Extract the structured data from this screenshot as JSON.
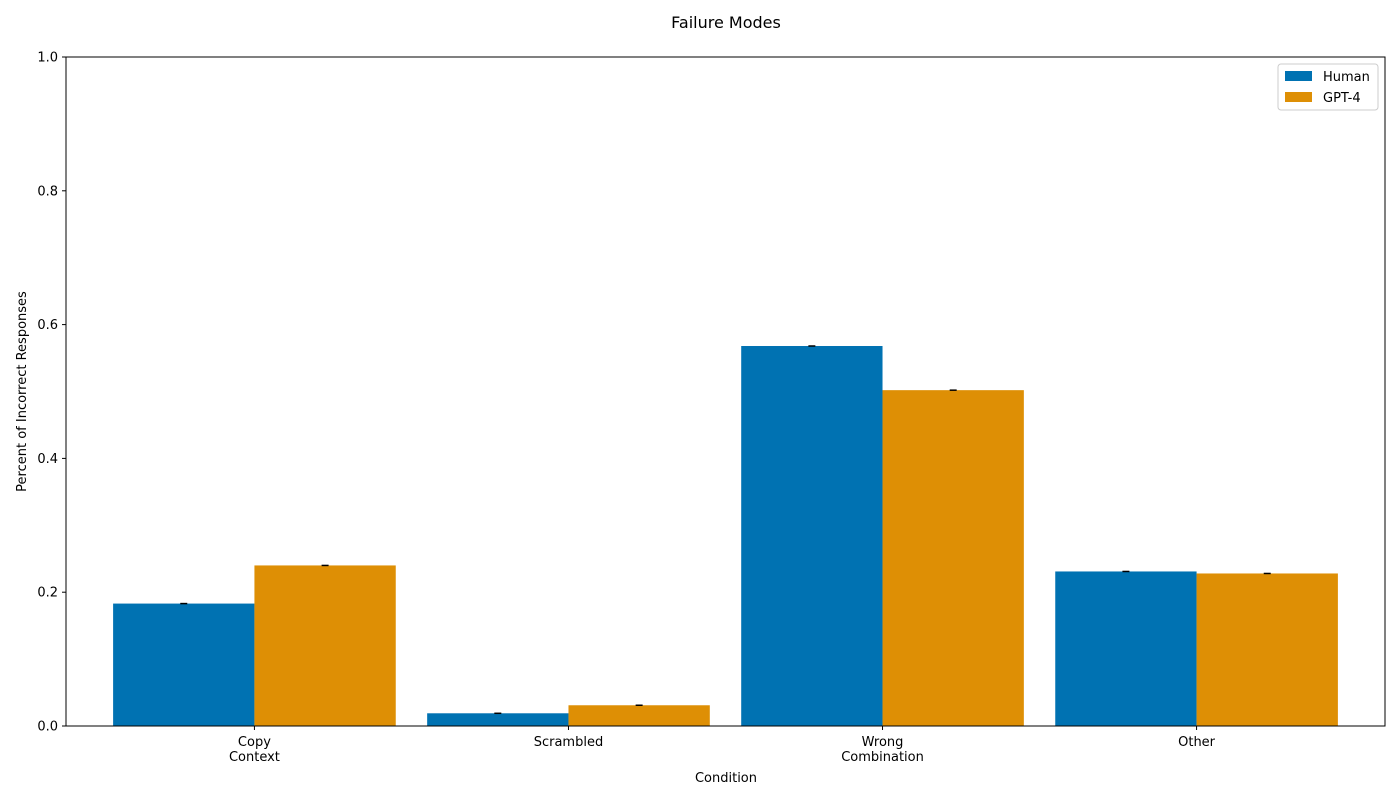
{
  "chart_data": {
    "type": "bar",
    "title": "Failure Modes",
    "xlabel": "Condition",
    "ylabel": "Percent of Incorrect Responses",
    "categories": [
      [
        "Copy",
        "Context"
      ],
      [
        "Scrambled"
      ],
      [
        "Wrong",
        "Combination"
      ],
      [
        "Other"
      ]
    ],
    "series": [
      {
        "name": "Human",
        "color": "#0072b2",
        "values": [
          0.183,
          0.019,
          0.568,
          0.231
        ]
      },
      {
        "name": "GPT-4",
        "color": "#de8f05",
        "values": [
          0.24,
          0.031,
          0.502,
          0.228
        ]
      }
    ],
    "ylim": [
      0,
      1.0
    ],
    "yticks": [
      0.0,
      0.2,
      0.4,
      0.6,
      0.8,
      1.0
    ],
    "ytick_labels": [
      "0.0",
      "0.2",
      "0.4",
      "0.6",
      "0.8",
      "1.0"
    ],
    "grid": false,
    "legend_position": "top-right",
    "error_bars": true
  }
}
